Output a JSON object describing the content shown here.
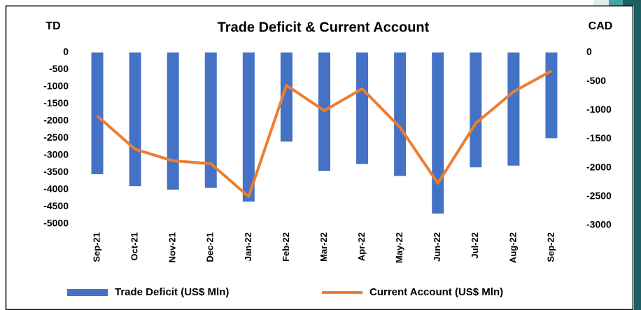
{
  "chart_data": {
    "type": "bar_line",
    "title": "Trade Deficit & Current Account",
    "y_label": "TD",
    "y2_label": "CAD",
    "categories": [
      "Sep-21",
      "Oct-21",
      "Nov-21",
      "Dec-21",
      "Jan-22",
      "Feb-22",
      "Mar-22",
      "Apr-22",
      "May-22",
      "Jun-22",
      "Jul-22",
      "Aug-22",
      "Sep-22"
    ],
    "series": [
      {
        "name": "Trade Deficit (US$ Mln)",
        "type": "bar",
        "color": "#4472c4",
        "axis": "y",
        "values": [
          -3550,
          -3900,
          -4000,
          -3950,
          -4350,
          -2600,
          -3450,
          -3250,
          -3600,
          -4700,
          -3350,
          -3300,
          -2500
        ]
      },
      {
        "name": "Current Account (US$ Mln)",
        "type": "line",
        "color": "#ed7d31",
        "axis": "y2",
        "values": [
          -1100,
          -1680,
          -1880,
          -1930,
          -2500,
          -570,
          -1010,
          -630,
          -1300,
          -2270,
          -1230,
          -680,
          -320
        ]
      }
    ],
    "ylim": [
      0,
      -5000
    ],
    "yticks": [
      0,
      -500,
      -1000,
      -1500,
      -2000,
      -2500,
      -3000,
      -3500,
      -4000,
      -4500,
      -5000
    ],
    "y2lim": [
      0,
      -3000
    ],
    "y2ticks": [
      0,
      -500,
      -1000,
      -1500,
      -2000,
      -2500,
      -3000
    ],
    "legend": "bottom"
  }
}
